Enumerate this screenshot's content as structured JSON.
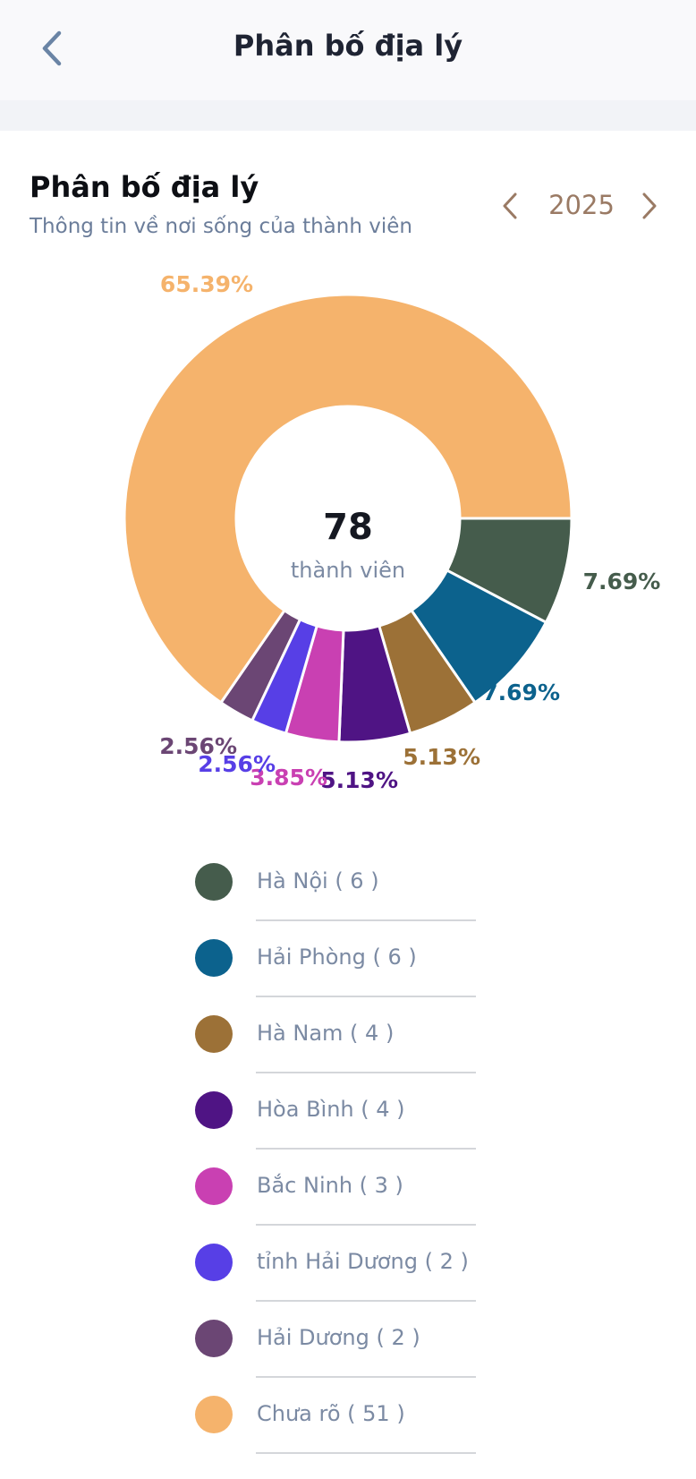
{
  "header": {
    "title": "Phân bố địa lý"
  },
  "card": {
    "title": "Phân bố địa lý",
    "subtitle": "Thông tin về nơi sống của thành viên",
    "year": "2025"
  },
  "chart_data": {
    "type": "pie",
    "center_value": "78",
    "center_label": "thành viên",
    "categories": [
      "Hà Nội",
      "Hải Phòng",
      "Hà Nam",
      "Hòa Bình",
      "Bắc Ninh",
      "tỉnh Hải Dương",
      "Hải Dương",
      "Chưa rõ"
    ],
    "values": [
      6,
      6,
      4,
      4,
      3,
      2,
      2,
      51
    ],
    "percent_labels": [
      "7.69%",
      "7.69%",
      "5.13%",
      "5.13%",
      "3.85%",
      "2.56%",
      "2.56%",
      "65.39%"
    ],
    "colors": [
      "#455c4c",
      "#0c628d",
      "#9c7137",
      "#4f1484",
      "#c940b2",
      "#573fe6",
      "#6b4674",
      "#f5b36c"
    ]
  },
  "legend": [
    {
      "label": "Hà Nội ( 6 )",
      "color": "#455c4c"
    },
    {
      "label": "Hải Phòng ( 6 )",
      "color": "#0c628d"
    },
    {
      "label": "Hà Nam ( 4 )",
      "color": "#9c7137"
    },
    {
      "label": "Hòa Bình ( 4 )",
      "color": "#4f1484"
    },
    {
      "label": "Bắc Ninh ( 3 )",
      "color": "#c940b2"
    },
    {
      "label": "tỉnh Hải Dương ( 2 )",
      "color": "#573fe6"
    },
    {
      "label": "Hải Dương ( 2 )",
      "color": "#6b4674"
    },
    {
      "label": "Chưa rõ ( 51 )",
      "color": "#f5b36c"
    }
  ],
  "icons": {
    "back": "chevron-left-icon",
    "year_prev": "chevron-left-icon",
    "year_next": "chevron-right-icon"
  }
}
